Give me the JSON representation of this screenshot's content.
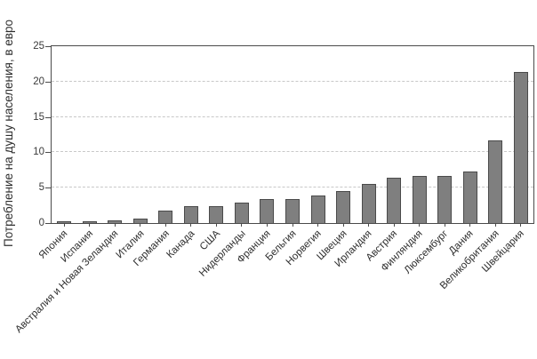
{
  "chart_data": {
    "type": "bar",
    "title": "",
    "ylabel": "Потребление на душу населения, в евро",
    "xlabel": "",
    "categories": [
      "Япония",
      "Испания",
      "Австралия и Новая Зеландия",
      "Италия",
      "Германия",
      "Канада",
      "США",
      "Нидерланды",
      "Франция",
      "Бельгия",
      "Норвегия",
      "Швеция",
      "Ирландия",
      "Австрия",
      "Финляндия",
      "Люксембург",
      "Дания",
      "Великобритания",
      "Швейцария"
    ],
    "values": [
      0.2,
      0.2,
      0.4,
      0.6,
      1.8,
      2.4,
      2.4,
      2.9,
      3.4,
      3.4,
      3.9,
      4.5,
      5.5,
      6.4,
      6.6,
      6.6,
      7.3,
      11.7,
      21.3
    ],
    "ylim": [
      0,
      25
    ],
    "yticks": [
      0,
      5,
      10,
      15,
      20,
      25
    ],
    "grid": "horizontal-dashed",
    "legend": "none",
    "bar_color": "#7f7f7f",
    "bar_border_color": "#4a4a4a"
  },
  "colors": {
    "background": "#ffffff",
    "axis_border": "#4a4a4a",
    "grid_line": "#c8c8c8",
    "text": "#2e2e2e"
  }
}
